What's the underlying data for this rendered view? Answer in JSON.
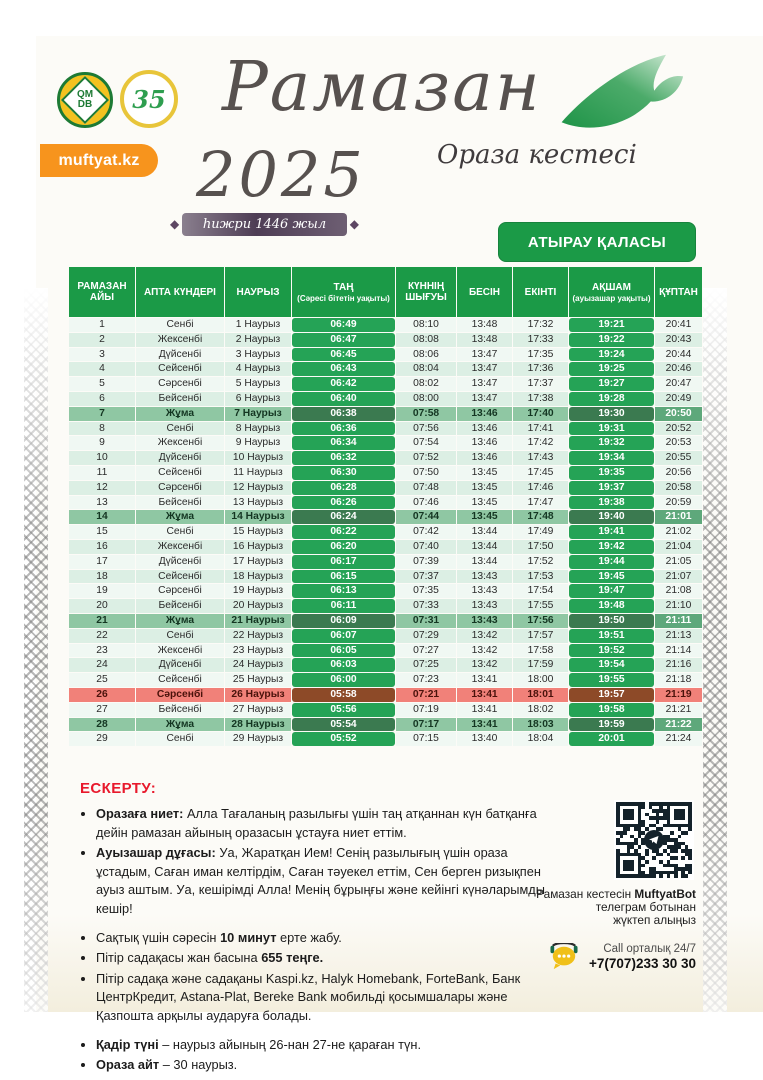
{
  "header": {
    "logo_qmdb_line1": "QM",
    "logo_qmdb_line2": "DB",
    "logo_35": "35",
    "site_badge": "muftyat.kz",
    "title_script": "Рамазан",
    "year": "2025",
    "subtitle": "Ораза кестесі",
    "hijri": "һижри 1446 жыл",
    "city_button": "АТЫРАУ ҚАЛАСЫ"
  },
  "table": {
    "columns": [
      {
        "label": "РАМАЗАН АЙЫ"
      },
      {
        "label": "АПТА КҮНДЕРІ"
      },
      {
        "label": "НАУРЫЗ"
      },
      {
        "label": "ТАҢ",
        "sub": "(Сәресі бітетін уақыты)"
      },
      {
        "label": "КҮННІҢ ШЫҒУЫ"
      },
      {
        "label": "БЕСІН"
      },
      {
        "label": "ЕКІНТІ"
      },
      {
        "label": "АҚШАМ",
        "sub": "(ауызашар уақыты)"
      },
      {
        "label": "ҚҰПТАН"
      }
    ],
    "rows": [
      [
        "1",
        "Сенбі",
        "1 Наурыз",
        "06:49",
        "08:10",
        "13:48",
        "17:32",
        "19:21",
        "20:41"
      ],
      [
        "2",
        "Жексенбі",
        "2 Наурыз",
        "06:47",
        "08:08",
        "13:48",
        "17:33",
        "19:22",
        "20:43"
      ],
      [
        "3",
        "Дүйсенбі",
        "3 Наурыз",
        "06:45",
        "08:06",
        "13:47",
        "17:35",
        "19:24",
        "20:44"
      ],
      [
        "4",
        "Сейсенбі",
        "4 Наурыз",
        "06:43",
        "08:04",
        "13:47",
        "17:36",
        "19:25",
        "20:46"
      ],
      [
        "5",
        "Сәрсенбі",
        "5 Наурыз",
        "06:42",
        "08:02",
        "13:47",
        "17:37",
        "19:27",
        "20:47"
      ],
      [
        "6",
        "Бейсенбі",
        "6 Наурыз",
        "06:40",
        "08:00",
        "13:47",
        "17:38",
        "19:28",
        "20:49"
      ],
      [
        "7",
        "Жұма",
        "7 Наурыз",
        "06:38",
        "07:58",
        "13:46",
        "17:40",
        "19:30",
        "20:50"
      ],
      [
        "8",
        "Сенбі",
        "8 Наурыз",
        "06:36",
        "07:56",
        "13:46",
        "17:41",
        "19:31",
        "20:52"
      ],
      [
        "9",
        "Жексенбі",
        "9 Наурыз",
        "06:34",
        "07:54",
        "13:46",
        "17:42",
        "19:32",
        "20:53"
      ],
      [
        "10",
        "Дүйсенбі",
        "10 Наурыз",
        "06:32",
        "07:52",
        "13:46",
        "17:43",
        "19:34",
        "20:55"
      ],
      [
        "11",
        "Сейсенбі",
        "11 Наурыз",
        "06:30",
        "07:50",
        "13:45",
        "17:45",
        "19:35",
        "20:56"
      ],
      [
        "12",
        "Сәрсенбі",
        "12 Наурыз",
        "06:28",
        "07:48",
        "13:45",
        "17:46",
        "19:37",
        "20:58"
      ],
      [
        "13",
        "Бейсенбі",
        "13 Наурыз",
        "06:26",
        "07:46",
        "13:45",
        "17:47",
        "19:38",
        "20:59"
      ],
      [
        "14",
        "Жұма",
        "14 Наурыз",
        "06:24",
        "07:44",
        "13:45",
        "17:48",
        "19:40",
        "21:01"
      ],
      [
        "15",
        "Сенбі",
        "15 Наурыз",
        "06:22",
        "07:42",
        "13:44",
        "17:49",
        "19:41",
        "21:02"
      ],
      [
        "16",
        "Жексенбі",
        "16 Наурыз",
        "06:20",
        "07:40",
        "13:44",
        "17:50",
        "19:42",
        "21:04"
      ],
      [
        "17",
        "Дүйсенбі",
        "17 Наурыз",
        "06:17",
        "07:39",
        "13:44",
        "17:52",
        "19:44",
        "21:05"
      ],
      [
        "18",
        "Сейсенбі",
        "18 Наурыз",
        "06:15",
        "07:37",
        "13:43",
        "17:53",
        "19:45",
        "21:07"
      ],
      [
        "19",
        "Сәрсенбі",
        "19 Наурыз",
        "06:13",
        "07:35",
        "13:43",
        "17:54",
        "19:47",
        "21:08"
      ],
      [
        "20",
        "Бейсенбі",
        "20 Наурыз",
        "06:11",
        "07:33",
        "13:43",
        "17:55",
        "19:48",
        "21:10"
      ],
      [
        "21",
        "Жұма",
        "21 Наурыз",
        "06:09",
        "07:31",
        "13:43",
        "17:56",
        "19:50",
        "21:11"
      ],
      [
        "22",
        "Сенбі",
        "22 Наурыз",
        "06:07",
        "07:29",
        "13:42",
        "17:57",
        "19:51",
        "21:13"
      ],
      [
        "23",
        "Жексенбі",
        "23 Наурыз",
        "06:05",
        "07:27",
        "13:42",
        "17:58",
        "19:52",
        "21:14"
      ],
      [
        "24",
        "Дүйсенбі",
        "24 Наурыз",
        "06:03",
        "07:25",
        "13:42",
        "17:59",
        "19:54",
        "21:16"
      ],
      [
        "25",
        "Сейсенбі",
        "25 Наурыз",
        "06:00",
        "07:23",
        "13:41",
        "18:00",
        "19:55",
        "21:18"
      ],
      [
        "26",
        "Сәрсенбі",
        "26 Наурыз",
        "05:58",
        "07:21",
        "13:41",
        "18:01",
        "19:57",
        "21:19"
      ],
      [
        "27",
        "Бейсенбі",
        "27 Наурыз",
        "05:56",
        "07:19",
        "13:41",
        "18:02",
        "19:58",
        "21:21"
      ],
      [
        "28",
        "Жұма",
        "28 Наурыз",
        "05:54",
        "07:17",
        "13:41",
        "18:03",
        "19:59",
        "21:22"
      ],
      [
        "29",
        "Сенбі",
        "29 Наурыз",
        "05:52",
        "07:15",
        "13:40",
        "18:04",
        "20:01",
        "21:24"
      ]
    ],
    "friday_rows": [
      7,
      14,
      21,
      28
    ],
    "qadir_row": 26
  },
  "notes": {
    "heading": "ЕСКЕРТУ:",
    "groups": [
      [
        [
          {
            "t": "Оразаға ниет: ",
            "b": true
          },
          {
            "t": "Алла Тағаланың разылығы үшін таң атқаннан күн батқанға дейін рамазан айының оразасын ұстауға ниет еттім."
          }
        ],
        [
          {
            "t": "Ауызашар дұғасы: ",
            "b": true
          },
          {
            "t": "Уа, Жаратқан Ием! Сенің разылығың үшін ораза ұстадым, Саған иман келтірдім, Саған тәуекел еттім, Сен берген ризықпен ауыз аштым. Уа, кешірімді Алла! Менің бұрыңғы және кейінгі күнәларымды кешір!"
          }
        ]
      ],
      [
        [
          {
            "t": "Сақтық үшін сәресін "
          },
          {
            "t": "10 минут",
            "b": true
          },
          {
            "t": " ерте жабу."
          }
        ],
        [
          {
            "t": "Пітір садақасы жан басына "
          },
          {
            "t": "655 теңге.",
            "b": true
          }
        ],
        [
          {
            "t": "Пітір садақа және садақаны Kaspi.kz, Halyk Homebank, ForteBank, Банк ЦентрКредит, Astana-Plat, Bereke Bank мобильді қосымшалары және Қазпошта арқылы аударуға болады."
          }
        ]
      ],
      [
        [
          {
            "t": "Қадір түні",
            "b": true
          },
          {
            "t": " – наурыз айының 26-нан 27-не қараған түн."
          }
        ],
        [
          {
            "t": "Ораза айт",
            "b": true
          },
          {
            "t": " – 30 наурыз."
          }
        ]
      ]
    ]
  },
  "contact": {
    "caption_lines": [
      [
        {
          "t": "Рамазан кестесін "
        },
        {
          "t": "MuftyatBot",
          "b": true
        }
      ],
      [
        {
          "t": "телеграм ботынан"
        }
      ],
      [
        {
          "t": "жүктеп алыңыз"
        }
      ]
    ],
    "call_label": "Call орталық 24/7",
    "phone": "+7(707)233 30 30"
  },
  "colors": {
    "header_green": "#1b9a47",
    "cell_green": "#25a356",
    "friday_bg": "#8fc7a3",
    "friday_cell": "#3b7a50",
    "friday_quptan": "#5ea87b",
    "qadir_bg": "#f18179",
    "qadir_cell": "#8d4a28",
    "row_light": "#f0f8f3",
    "row_mint": "#dcefe4",
    "orange": "#f7941d",
    "note_red": "#e8192c",
    "banner_purple": "#5d4663"
  }
}
